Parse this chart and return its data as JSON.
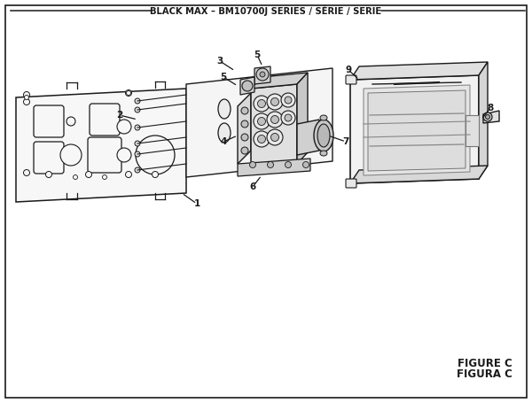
{
  "title": "BLACK MAX – BM10700J SERIES / SÉRIE / SERIE",
  "figure_label_1": "FIGURE C",
  "figure_label_2": "FIGURA C",
  "bg_color": "#ffffff",
  "lc": "#1a1a1a",
  "tc": "#1a1a1a"
}
